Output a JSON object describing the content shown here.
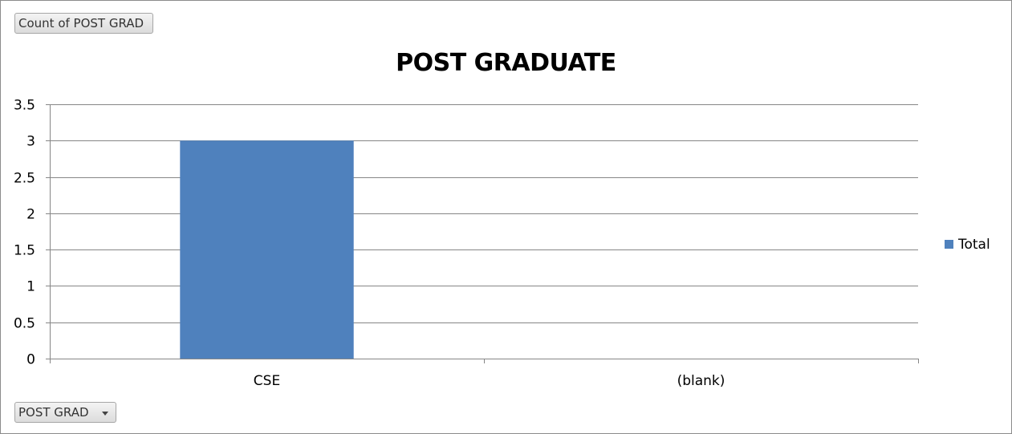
{
  "pivot_fields": {
    "value_field": "Count of POST GRAD",
    "axis_field": "POST GRAD"
  },
  "colors": {
    "series": "#4f81bd",
    "gridline": "#868686"
  },
  "chart_data": {
    "type": "bar",
    "title": "POST GRADUATE",
    "xlabel": "",
    "ylabel": "",
    "categories": [
      "CSE",
      "(blank)"
    ],
    "series": [
      {
        "name": "Total",
        "values": [
          3,
          null
        ]
      }
    ],
    "ylim": [
      0,
      3.5
    ],
    "yticks": [
      0,
      0.5,
      1,
      1.5,
      2,
      2.5,
      3,
      3.5
    ],
    "grid": true,
    "legend": "right"
  }
}
